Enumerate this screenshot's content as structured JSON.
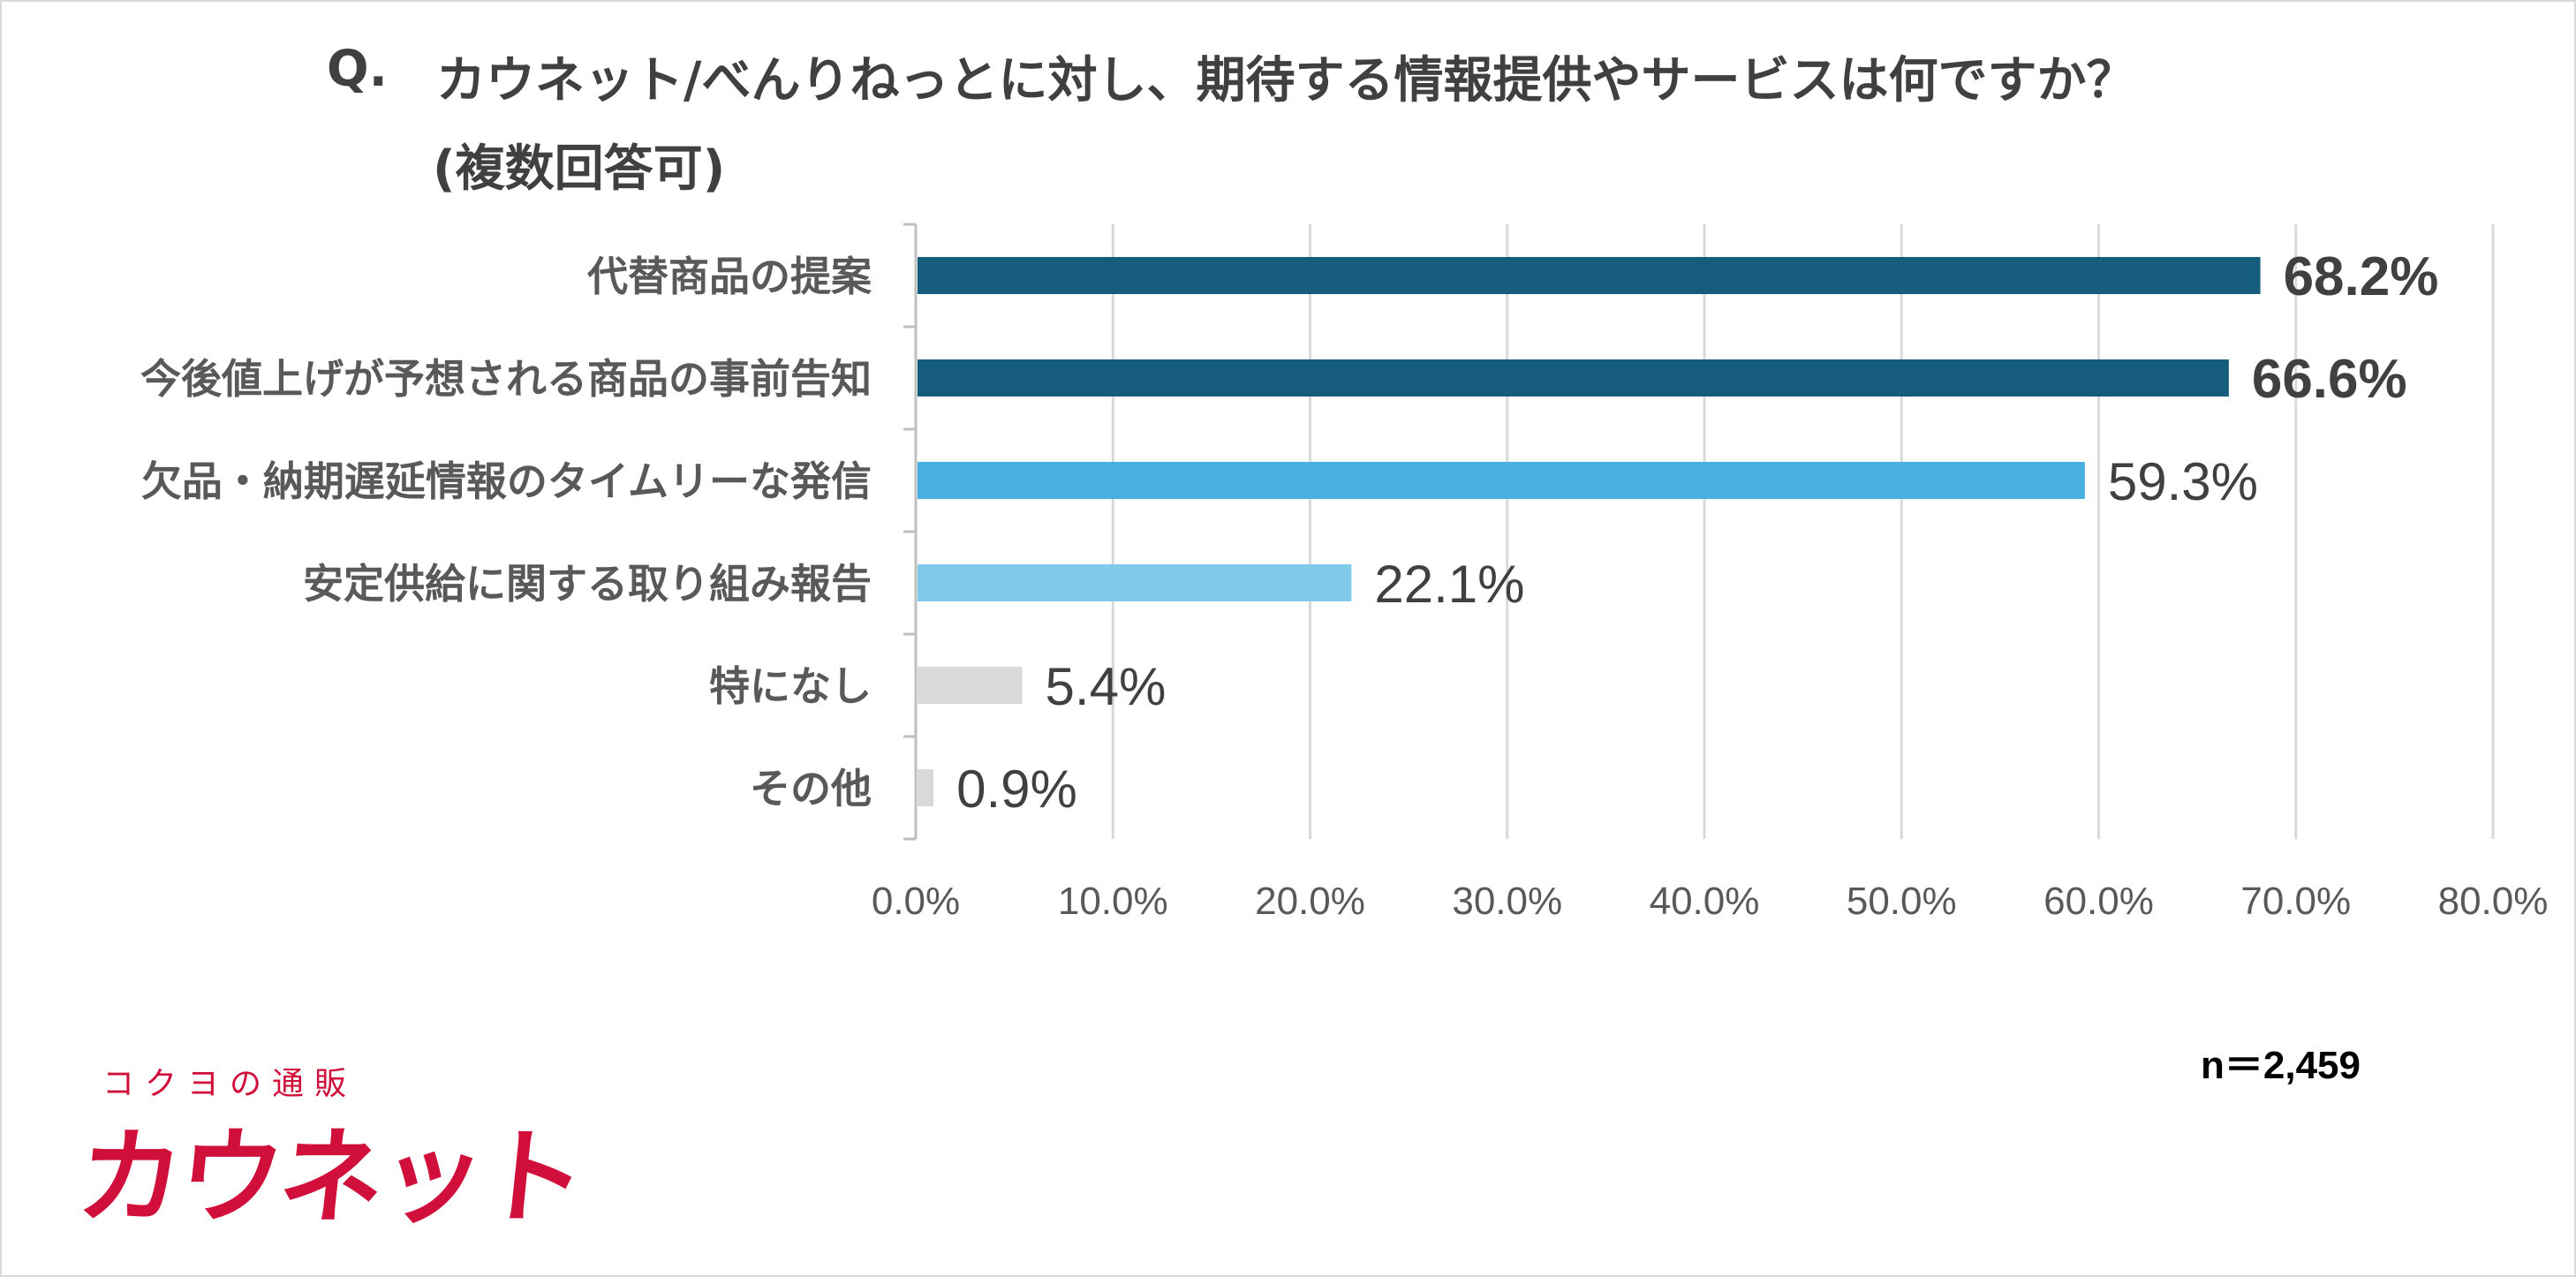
{
  "question": {
    "mark": "Q.",
    "line1": "カウネット/べんりねっとに対し、期待する情報提供やサービスは何ですか？",
    "line2": "(複数回答可)"
  },
  "sample_size": "n＝2,459",
  "logo": {
    "subtitle": "コクヨの通販",
    "name": "カウネット"
  },
  "colors": {
    "dark_blue": "#165c7d",
    "blue": "#47b0e0",
    "light_blue": "#81cbea",
    "gray": "#d9d9d9",
    "brand_red": "#d0103a"
  },
  "chart_data": {
    "type": "bar",
    "orientation": "horizontal",
    "categories": [
      "代替商品の提案",
      "今後値上げが予想される商品の事前告知",
      "欠品・納期遅延情報のタイムリーな発信",
      "安定供給に関する取り組み報告",
      "特になし",
      "その他"
    ],
    "values": [
      68.2,
      66.6,
      59.3,
      22.1,
      5.4,
      0.9
    ],
    "value_labels": [
      "68.2%",
      "66.6%",
      "59.3%",
      "22.1%",
      "5.4%",
      "0.9%"
    ],
    "label_bold": [
      true,
      true,
      false,
      false,
      false,
      false
    ],
    "bar_colors": [
      "#165c7d",
      "#165c7d",
      "#47b0e0",
      "#81cbea",
      "#d9d9d9",
      "#d9d9d9"
    ],
    "xlim": [
      0,
      80
    ],
    "ticks": [
      0,
      10,
      20,
      30,
      40,
      50,
      60,
      70,
      80
    ],
    "tick_labels": [
      "0.0%",
      "10.0%",
      "20.0%",
      "30.0%",
      "40.0%",
      "50.0%",
      "60.0%",
      "70.0%",
      "80.0%"
    ],
    "grid": true,
    "legend": "none"
  }
}
